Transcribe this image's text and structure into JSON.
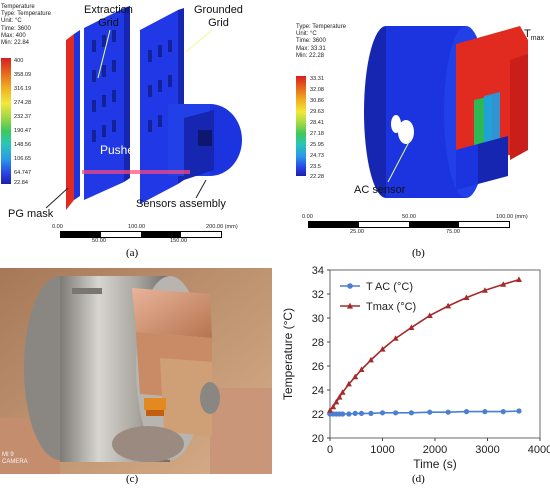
{
  "panel_a": {
    "info": [
      "Temperature",
      "Type: Temperature",
      "Unit: °C",
      "Time: 3600",
      "Max: 400",
      "Min: 22.84"
    ],
    "legend": [
      "400",
      "358.09",
      "316.19",
      "274.28",
      "232.37",
      "190.47",
      "148.56",
      "106.65",
      "64.747",
      "22.84"
    ],
    "labels": {
      "extraction": "Extraction\nGrid",
      "grounded": "Grounded\nGrid",
      "pusher": "Pusher",
      "pg_mask": "PG mask",
      "sensors": "Sensors assembly"
    },
    "ruler_top": [
      "0.00",
      "100.00",
      "200.00 (mm)"
    ],
    "ruler_bottom": [
      "50.00",
      "150.00"
    ],
    "caption": "(a)"
  },
  "panel_b": {
    "info": [
      "Type: Temperature",
      "Unit: °C",
      "Time: 3600",
      "Max: 33.31",
      "Min: 22.28"
    ],
    "legend": [
      "33.31",
      "32.08",
      "30.86",
      "29.63",
      "28.41",
      "27.18",
      "25.95",
      "24.73",
      "23.5",
      "22.28"
    ],
    "labels": {
      "ac": "AC sensor",
      "tmax": "T",
      "tmax_sub": "max"
    },
    "ruler_top": [
      "0.00",
      "50.00",
      "100.00 (mm)"
    ],
    "ruler_bottom": [
      "25.00",
      "75.00"
    ],
    "caption": "(b)"
  },
  "panel_c": {
    "overlay": [
      "MI 9",
      "CAMERA"
    ],
    "caption": "(c)"
  },
  "panel_d": {
    "caption": "(d)"
  },
  "colors": {
    "tac": "#4a7fd4",
    "tmax": "#a52a2a",
    "model_blue": "#1c34e0",
    "model_red": "#e12a20"
  },
  "chart_data": {
    "type": "line",
    "xlabel": "Time (s)",
    "ylabel": "Temperature (°C)",
    "xlim": [
      0,
      4000
    ],
    "ylim": [
      20,
      34
    ],
    "xticks": [
      0,
      1000,
      2000,
      3000,
      4000
    ],
    "yticks": [
      20,
      22,
      24,
      26,
      28,
      30,
      32,
      34
    ],
    "grid": false,
    "legend_position": "top-left",
    "series": [
      {
        "name": "T AC (°C)",
        "marker": "circle",
        "x": [
          0,
          60,
          120,
          180,
          240,
          360,
          480,
          600,
          780,
          1000,
          1250,
          1550,
          1900,
          2250,
          2600,
          2950,
          3300,
          3600
        ],
        "y": [
          22.0,
          22.0,
          22.0,
          22.0,
          22.0,
          22.0,
          22.05,
          22.05,
          22.05,
          22.1,
          22.1,
          22.1,
          22.15,
          22.15,
          22.2,
          22.2,
          22.2,
          22.25
        ]
      },
      {
        "name": "Tmax (°C)",
        "marker": "triangle",
        "x": [
          0,
          60,
          120,
          180,
          240,
          360,
          480,
          600,
          780,
          1000,
          1250,
          1550,
          1900,
          2250,
          2600,
          2950,
          3300,
          3600
        ],
        "y": [
          22.3,
          22.6,
          23.0,
          23.4,
          23.8,
          24.5,
          25.1,
          25.7,
          26.5,
          27.4,
          28.3,
          29.2,
          30.2,
          31.0,
          31.7,
          32.3,
          32.8,
          33.2
        ]
      }
    ]
  }
}
